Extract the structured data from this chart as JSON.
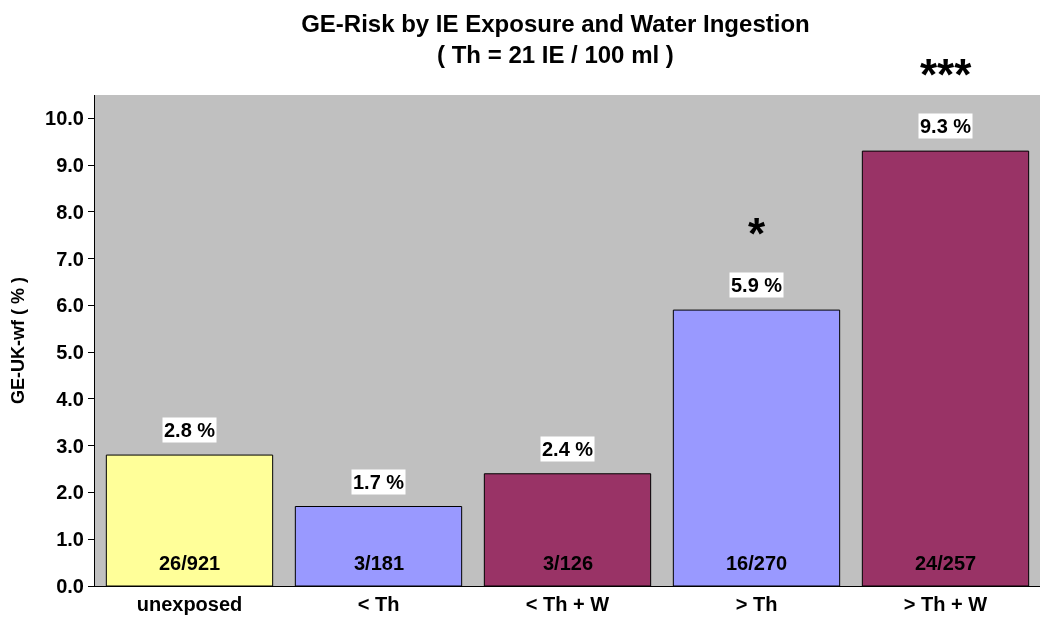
{
  "chart_data": {
    "type": "bar",
    "title": "GE-Risk by IE Exposure and Water Ingestion\n( Th = 21 IE / 100 ml )",
    "ylabel": "GE-UK-wf ( % )",
    "categories": [
      "unexposed",
      "< Th",
      "< Th + W",
      "> Th",
      "> Th + W"
    ],
    "values": [
      2.8,
      1.7,
      2.4,
      5.9,
      9.3
    ],
    "colors": [
      "#ffff99",
      "#9999ff",
      "#993366",
      "#9999ff",
      "#993366"
    ],
    "value_labels": [
      "2.8 %",
      "1.7 %",
      "2.4 %",
      "5.9 %",
      "9.3 %"
    ],
    "annotations": [
      "26/921",
      "3/181",
      "3/126",
      "16/270",
      "24/257",
      "*",
      "***"
    ],
    "ylim": [
      0,
      10.5
    ],
    "yticks": [
      {
        "value": 0,
        "label": "0.0"
      },
      {
        "value": 1,
        "label": "1.0"
      },
      {
        "value": 2,
        "label": "2.0"
      },
      {
        "value": 3,
        "label": "3.0"
      },
      {
        "value": 4,
        "label": "4.0"
      },
      {
        "value": 5,
        "label": "5.0"
      },
      {
        "value": 6,
        "label": "6.0"
      },
      {
        "value": 7,
        "label": "7.0"
      },
      {
        "value": 8,
        "label": "8.0"
      },
      {
        "value": 9,
        "label": "9.0"
      },
      {
        "value": 10,
        "label": "10.0"
      }
    ],
    "grid": false,
    "legend": false
  }
}
